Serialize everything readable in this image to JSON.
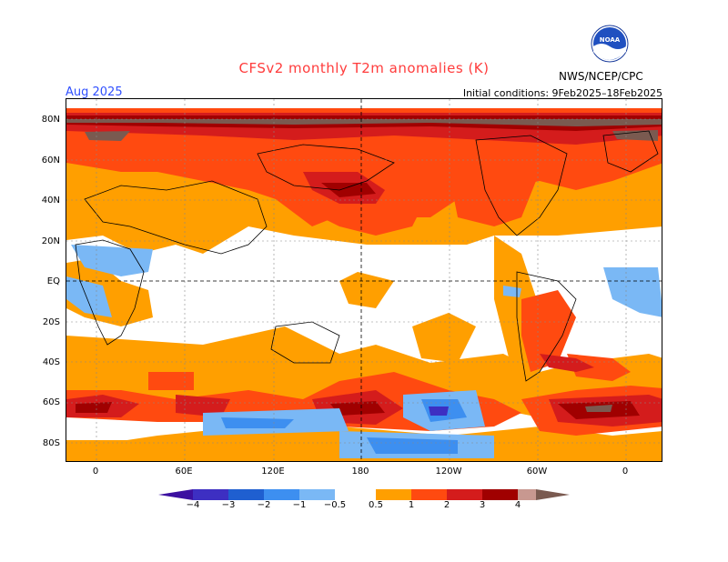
{
  "title": "CFSv2 monthly T2m anomalies (K)",
  "month": "Aug 2025",
  "initial_conditions": "Initial conditions: 9Feb2025–18Feb2025",
  "agency": "NWS/NCEP/CPC",
  "logo_text": "NOAA",
  "lat_ticks": [
    "80N",
    "60N",
    "40N",
    "20N",
    "EQ",
    "20S",
    "40S",
    "60S",
    "80S"
  ],
  "lon_ticks": [
    "0",
    "60E",
    "120E",
    "180",
    "120W",
    "60W",
    "0"
  ],
  "colorbar": {
    "labels": [
      "−4",
      "−3",
      "−2",
      "−1",
      "−0.5",
      "0.5",
      "1",
      "2",
      "3",
      "4"
    ],
    "colors": {
      "lt_-4": "#3c10a0",
      "-4_-3": "#3d2fc2",
      "-3_-2": "#1f5fd0",
      "-2_-1": "#3d8ff0",
      "-1_-0.5": "#7ab8f5",
      "neutral": "#ffffff",
      "0.5_1": "#ff9f00",
      "1_2": "#ff4a10",
      "2_3": "#d41c1c",
      "3_4": "#a00000",
      "4_5": "#c89890",
      "gt_5": "#7a5a50"
    }
  }
}
